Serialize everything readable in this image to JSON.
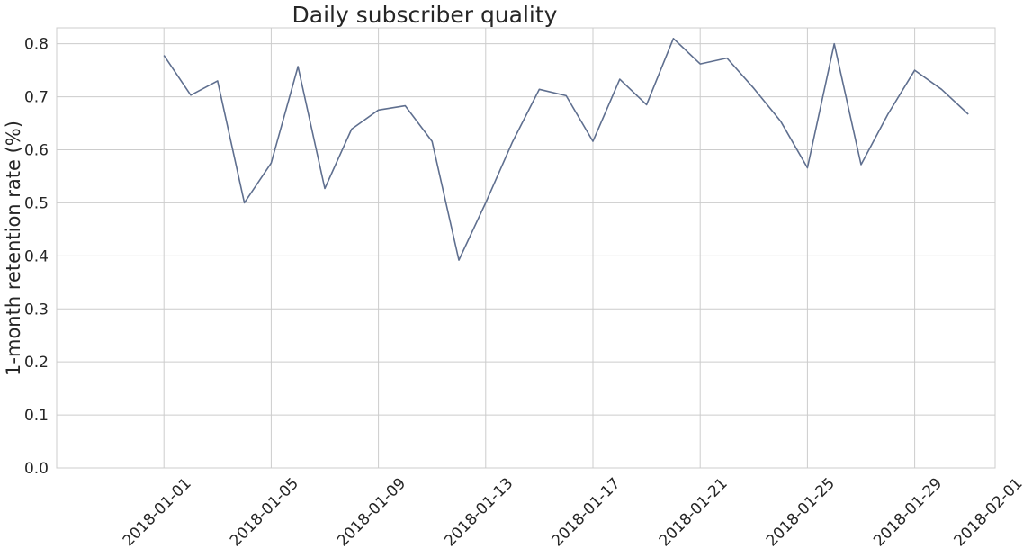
{
  "chart_data": {
    "type": "line",
    "title": "Daily subscriber quality",
    "xlabel": "",
    "ylabel": "1-month retention rate (%)",
    "ylim": [
      0,
      0.83
    ],
    "xlim": [
      "2017-12-28",
      "2018-02-01"
    ],
    "grid": true,
    "line_color": "#5f6f8f",
    "y_ticks": [
      "0.0",
      "0.1",
      "0.2",
      "0.3",
      "0.4",
      "0.5",
      "0.6",
      "0.7",
      "0.8"
    ],
    "x_ticks": [
      "2018-01-01",
      "2018-01-05",
      "2018-01-09",
      "2018-01-13",
      "2018-01-17",
      "2018-01-21",
      "2018-01-25",
      "2018-01-29",
      "2018-02-01"
    ],
    "x": [
      "2018-01-01",
      "2018-01-02",
      "2018-01-03",
      "2018-01-04",
      "2018-01-05",
      "2018-01-06",
      "2018-01-07",
      "2018-01-08",
      "2018-01-09",
      "2018-01-10",
      "2018-01-11",
      "2018-01-12",
      "2018-01-13",
      "2018-01-14",
      "2018-01-15",
      "2018-01-16",
      "2018-01-17",
      "2018-01-18",
      "2018-01-19",
      "2018-01-20",
      "2018-01-21",
      "2018-01-22",
      "2018-01-23",
      "2018-01-24",
      "2018-01-25",
      "2018-01-26",
      "2018-01-27",
      "2018-01-28",
      "2018-01-29",
      "2018-01-30",
      "2018-01-31"
    ],
    "series": [
      {
        "values": [
          0.778,
          0.703,
          0.73,
          0.5,
          0.575,
          0.757,
          0.527,
          0.639,
          0.675,
          0.683,
          0.616,
          0.392,
          0.5,
          0.615,
          0.714,
          0.702,
          0.616,
          0.733,
          0.685,
          0.81,
          0.762,
          0.773,
          0.716,
          0.654,
          0.566,
          0.8,
          0.572,
          0.667,
          0.75,
          0.714,
          0.667
        ]
      }
    ]
  }
}
